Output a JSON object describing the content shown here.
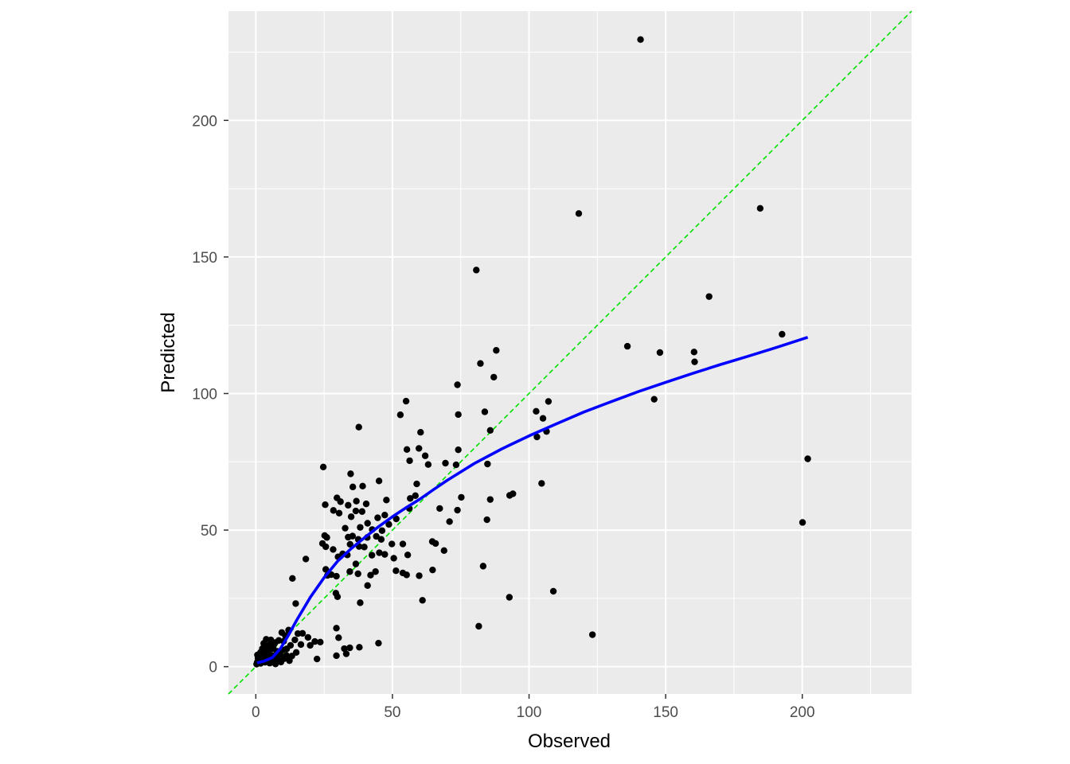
{
  "chart_data": {
    "type": "scatter",
    "title": "",
    "xlabel": "Observed",
    "ylabel": "Predicted",
    "xlim": [
      -10,
      240
    ],
    "ylim": [
      -10,
      240
    ],
    "x_ticks": [
      0,
      50,
      100,
      150,
      200
    ],
    "y_ticks": [
      0,
      50,
      100,
      150,
      200
    ],
    "x_tick_labels": [
      "0",
      "50",
      "100",
      "150",
      "200"
    ],
    "y_tick_labels": [
      "0",
      "50",
      "100",
      "150",
      "200"
    ],
    "grid": true,
    "panel_background": "#ebebeb",
    "point_color": "#000000",
    "points": [
      [
        140.8,
        229.6
      ],
      [
        118.2,
        165.9
      ],
      [
        184.6,
        167.8
      ],
      [
        80.7,
        145.2
      ],
      [
        165.9,
        135.5
      ],
      [
        192.6,
        121.7
      ],
      [
        136,
        117.3
      ],
      [
        88,
        115.8
      ],
      [
        147.9,
        115
      ],
      [
        160.4,
        115.2
      ],
      [
        160.6,
        111.6
      ],
      [
        82.2,
        111
      ],
      [
        87.1,
        106
      ],
      [
        145.8,
        97.9
      ],
      [
        73.8,
        103.2
      ],
      [
        55,
        97.2
      ],
      [
        107.1,
        97.1
      ],
      [
        52.9,
        92.2
      ],
      [
        74.1,
        92.3
      ],
      [
        83.8,
        93.3
      ],
      [
        102.6,
        93.5
      ],
      [
        105.1,
        90.9
      ],
      [
        37.7,
        87.7
      ],
      [
        85.8,
        86.5
      ],
      [
        60.3,
        85.8
      ],
      [
        106.4,
        86.1
      ],
      [
        102.9,
        84.1
      ],
      [
        55.3,
        79.5
      ],
      [
        59.7,
        79.9
      ],
      [
        74.1,
        79.4
      ],
      [
        62,
        77.2
      ],
      [
        56.3,
        75.4
      ],
      [
        63.1,
        74
      ],
      [
        69.4,
        74.5
      ],
      [
        73.3,
        73.9
      ],
      [
        84.8,
        74.2
      ],
      [
        24.7,
        73.1
      ],
      [
        34.7,
        70.6
      ],
      [
        202,
        76.1
      ],
      [
        45.1,
        68
      ],
      [
        58.9,
        66.9
      ],
      [
        39.1,
        66.1
      ],
      [
        35.5,
        65.8
      ],
      [
        104.6,
        67.1
      ],
      [
        29.7,
        61.8
      ],
      [
        31,
        60.4
      ],
      [
        36.8,
        60.6
      ],
      [
        40.4,
        59.6
      ],
      [
        25.4,
        59.3
      ],
      [
        33.8,
        59.1
      ],
      [
        47.8,
        61
      ],
      [
        56.5,
        61.6
      ],
      [
        58.4,
        62.6
      ],
      [
        75.2,
        62
      ],
      [
        85.8,
        61.2
      ],
      [
        92.9,
        62.7
      ],
      [
        94.1,
        63.3
      ],
      [
        47.2,
        55.5
      ],
      [
        44.6,
        54.5
      ],
      [
        51.4,
        54.1
      ],
      [
        56.2,
        57.9
      ],
      [
        67.3,
        57.9
      ],
      [
        73.8,
        57.3
      ],
      [
        28.4,
        57.2
      ],
      [
        30.5,
        56.2
      ],
      [
        34.9,
        54.9
      ],
      [
        36.6,
        57
      ],
      [
        38.9,
        56.8
      ],
      [
        40.9,
        52.5
      ],
      [
        42.6,
        50.2
      ],
      [
        46.2,
        49.8
      ],
      [
        48.7,
        52.1
      ],
      [
        32.7,
        50.7
      ],
      [
        38.2,
        51
      ],
      [
        44.1,
        47.7
      ],
      [
        84.6,
        53.8
      ],
      [
        70.9,
        53.1
      ],
      [
        200.1,
        52.8
      ],
      [
        25.2,
        48
      ],
      [
        26,
        47.3
      ],
      [
        33.8,
        47.4
      ],
      [
        35.4,
        47.8
      ],
      [
        37.5,
        46.6
      ],
      [
        40.8,
        47.3
      ],
      [
        45.9,
        46.6
      ],
      [
        49.8,
        44.9
      ],
      [
        53.8,
        44.9
      ],
      [
        64.6,
        45.8
      ],
      [
        65.8,
        45.1
      ],
      [
        68.9,
        42.5
      ],
      [
        24.4,
        45.1
      ],
      [
        25.6,
        43.9
      ],
      [
        28.3,
        42.9
      ],
      [
        31.8,
        41.3
      ],
      [
        34.5,
        44.8
      ],
      [
        37.8,
        44
      ],
      [
        39.7,
        43.8
      ],
      [
        42.5,
        40.8
      ],
      [
        45.2,
        41.7
      ],
      [
        47.2,
        41.1
      ],
      [
        50.5,
        39.7
      ],
      [
        55.6,
        40.9
      ],
      [
        18.3,
        39.4
      ],
      [
        30.1,
        40.2
      ],
      [
        33.5,
        40.9
      ],
      [
        36.6,
        37.6
      ],
      [
        25.6,
        35.6
      ],
      [
        26.2,
        33.4
      ],
      [
        27.6,
        33.7
      ],
      [
        29.5,
        33.1
      ],
      [
        34.4,
        34.8
      ],
      [
        37.4,
        34
      ],
      [
        42,
        33.5
      ],
      [
        43.8,
        34.8
      ],
      [
        51.3,
        35.1
      ],
      [
        53.8,
        34.3
      ],
      [
        55.2,
        33.6
      ],
      [
        64.7,
        35.4
      ],
      [
        83.2,
        36.8
      ],
      [
        13.4,
        32.3
      ],
      [
        40.9,
        29.7
      ],
      [
        29.3,
        26.9
      ],
      [
        29.9,
        25.6
      ],
      [
        59.8,
        33.3
      ],
      [
        38.2,
        23.4
      ],
      [
        14.6,
        23.1
      ],
      [
        61,
        24.3
      ],
      [
        92.8,
        25.4
      ],
      [
        108.9,
        27.6
      ],
      [
        81.6,
        14.8
      ],
      [
        123.2,
        11.7
      ],
      [
        29.5,
        14.1
      ],
      [
        30.3,
        10.6
      ],
      [
        32.4,
        6.6
      ],
      [
        34.4,
        6.9
      ],
      [
        37.9,
        7.1
      ],
      [
        44.9,
        8.6
      ],
      [
        21.6,
        9.2
      ],
      [
        23.6,
        9
      ],
      [
        19.1,
        10.7
      ],
      [
        29.5,
        4
      ],
      [
        33.1,
        4.7
      ],
      [
        22.4,
        2.8
      ],
      [
        15.4,
        12.1
      ],
      [
        17.1,
        12.2
      ],
      [
        12,
        13.4
      ],
      [
        10.8,
        11.4
      ],
      [
        14.3,
        9.8
      ],
      [
        16.5,
        8.1
      ],
      [
        19.9,
        7.8
      ],
      [
        12.7,
        7.8
      ],
      [
        14.8,
        5.2
      ],
      [
        13.2,
        3.9
      ],
      [
        10.2,
        9.3
      ],
      [
        9.5,
        12.5
      ],
      [
        8.4,
        9.6
      ],
      [
        11.3,
        6.5
      ],
      [
        7.1,
        8.8
      ],
      [
        6.4,
        6.6
      ],
      [
        5.5,
        9.8
      ],
      [
        4.8,
        7.8
      ],
      [
        3.8,
        10
      ],
      [
        2.9,
        8.5
      ],
      [
        2.4,
        6.6
      ],
      [
        1.7,
        5.2
      ],
      [
        1.3,
        3.8
      ],
      [
        0.8,
        3.1
      ],
      [
        0.5,
        1.6
      ],
      [
        0.3,
        0.9
      ],
      [
        1.8,
        1.2
      ],
      [
        2.7,
        2.6
      ],
      [
        3.4,
        1.6
      ],
      [
        4.2,
        2.8
      ],
      [
        5.1,
        1.3
      ],
      [
        6.3,
        2.1
      ],
      [
        7.2,
        1
      ],
      [
        8.1,
        2.5
      ],
      [
        9.2,
        1.7
      ],
      [
        10.3,
        2.9
      ],
      [
        11.2,
        4.1
      ],
      [
        12.3,
        2.2
      ],
      [
        3.1,
        4.4
      ],
      [
        4.4,
        5.1
      ],
      [
        5.8,
        4.2
      ],
      [
        6.9,
        3.7
      ],
      [
        7.8,
        5.6
      ],
      [
        8.9,
        4.4
      ],
      [
        9.8,
        6.1
      ],
      [
        2.1,
        3.9
      ],
      [
        1.1,
        2.2
      ],
      [
        0.6,
        4.3
      ],
      [
        4.1,
        7.2
      ],
      [
        5.5,
        6.6
      ],
      [
        6.7,
        8.3
      ],
      [
        2.6,
        5.4
      ]
    ],
    "reference_line": {
      "type": "identity",
      "color": "#00e000",
      "style": "dashed"
    },
    "smooth_line": {
      "color": "#0000ff",
      "x": [
        0.5,
        3,
        6,
        9,
        12,
        15,
        20,
        25,
        30,
        35,
        40,
        45,
        50,
        55,
        60,
        65,
        70,
        75,
        80,
        90,
        100,
        110,
        120,
        130,
        140,
        150,
        160,
        170,
        180,
        190,
        202
      ],
      "y": [
        1.4,
        2,
        3.3,
        6.6,
        11.6,
        17.1,
        25.5,
        32.6,
        38.7,
        43.3,
        47.4,
        51.3,
        54.9,
        58.2,
        61.3,
        64.8,
        68.2,
        71.3,
        74.4,
        79.7,
        84.5,
        88.9,
        93.2,
        97,
        100.7,
        104.1,
        107.4,
        110.6,
        113.6,
        116.7,
        120.6
      ]
    }
  }
}
